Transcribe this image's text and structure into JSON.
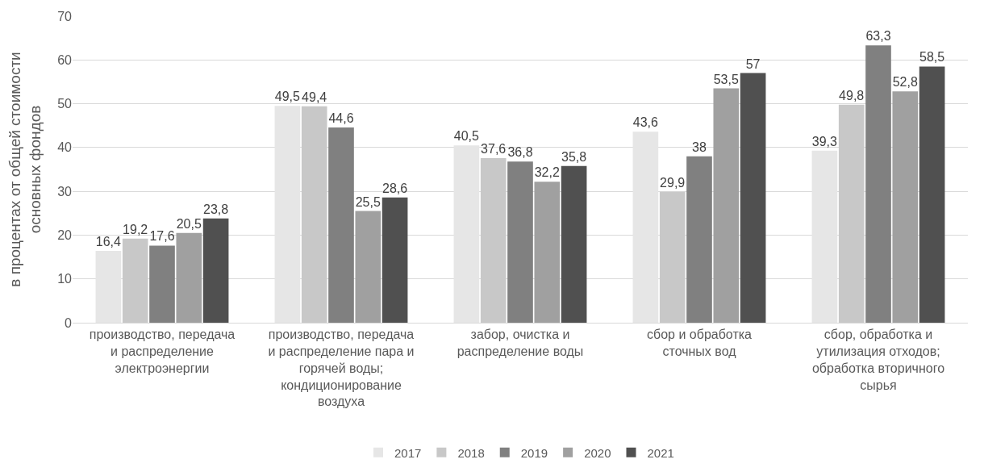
{
  "chart_data": {
    "type": "bar",
    "ylabel": "в процентах от общей стоимости основных фондов",
    "categories": [
      "производство, передача и распределение электроэнергии",
      "производство, передача и распределение пара и горячей воды; кондиционирование воздуха",
      "забор, очистка и распределение воды",
      "сбор и обработка сточных вод",
      "сбор, обработка и утилизация отходов; обработка вторичного сырья"
    ],
    "series": [
      {
        "name": "2017",
        "color": "#e6e6e6",
        "values": [
          16.4,
          49.5,
          40.5,
          43.6,
          39.3
        ],
        "value_labels": [
          "16,4",
          "49,5",
          "40,5",
          "43,6",
          "39,3"
        ]
      },
      {
        "name": "2018",
        "color": "#c8c8c8",
        "values": [
          19.2,
          49.4,
          37.6,
          29.9,
          49.8
        ],
        "value_labels": [
          "19,2",
          "49,4",
          "37,6",
          "29,9",
          "49,8"
        ]
      },
      {
        "name": "2019",
        "color": "#808080",
        "values": [
          17.6,
          44.6,
          36.8,
          38,
          63.3
        ],
        "value_labels": [
          "17,6",
          "44,6",
          "36,8",
          "38",
          "63,3"
        ]
      },
      {
        "name": "2020",
        "color": "#a0a0a0",
        "values": [
          20.5,
          25.5,
          32.2,
          53.5,
          52.8
        ],
        "value_labels": [
          "20,5",
          "25,5",
          "32,2",
          "53,5",
          "52,8"
        ]
      },
      {
        "name": "2021",
        "color": "#505050",
        "values": [
          23.8,
          28.6,
          35.8,
          57,
          58.5
        ],
        "value_labels": [
          "23,8",
          "28,6",
          "35,8",
          "57",
          "58,5"
        ]
      }
    ],
    "ylim": [
      0,
      70
    ],
    "yticks": [
      0,
      10,
      20,
      30,
      40,
      50,
      60,
      70
    ],
    "grid": "y",
    "legend": "bottom"
  }
}
